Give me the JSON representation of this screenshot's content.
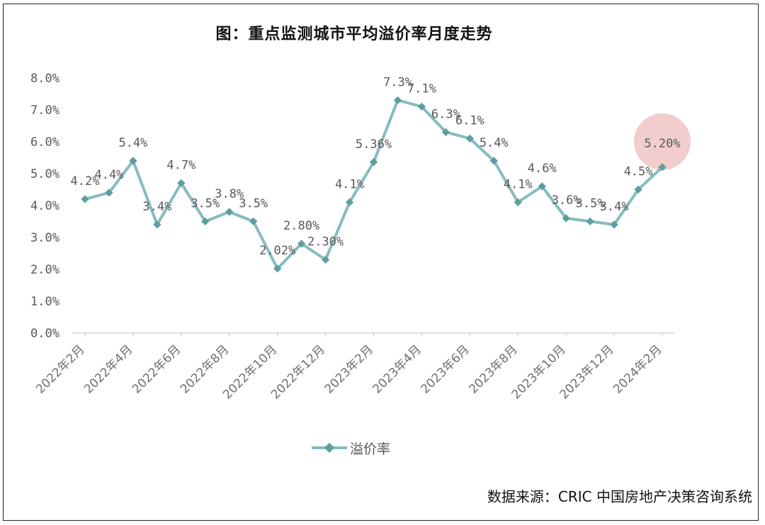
{
  "chart_data": {
    "type": "line",
    "title": "图：重点监测城市平均溢价率月度走势",
    "xlabel": "",
    "ylabel": "",
    "ylim": [
      0,
      8
    ],
    "yticks": [
      "0.0%",
      "1.0%",
      "2.0%",
      "3.0%",
      "4.0%",
      "5.0%",
      "6.0%",
      "7.0%",
      "8.0%"
    ],
    "x_tick_labels": [
      "2022年2月",
      "2022年4月",
      "2022年6月",
      "2022年8月",
      "2022年10月",
      "2022年12月",
      "2023年2月",
      "2023年4月",
      "2023年6月",
      "2023年8月",
      "2023年10月",
      "2023年12月",
      "2024年2月"
    ],
    "x_tick_positions": [
      0,
      2,
      4,
      6,
      8,
      10,
      12,
      14,
      16,
      18,
      20,
      22,
      24
    ],
    "categories": [
      "2022年2月",
      "2022年3月",
      "2022年4月",
      "2022年5月",
      "2022年6月",
      "2022年7月",
      "2022年8月",
      "2022年9月",
      "2022年10月",
      "2022年11月",
      "2022年12月",
      "2023年1月",
      "2023年2月",
      "2023年3月",
      "2023年4月",
      "2023年5月",
      "2023年6月",
      "2023年7月",
      "2023年8月",
      "2023年9月",
      "2023年10月",
      "2023年11月",
      "2023年12月",
      "2024年1月",
      "2024年2月"
    ],
    "series": [
      {
        "name": "溢价率",
        "color": "#86bcbe",
        "values": [
          4.2,
          4.4,
          5.4,
          3.4,
          4.7,
          3.5,
          3.8,
          3.5,
          2.02,
          2.8,
          2.3,
          4.1,
          5.36,
          7.3,
          7.1,
          6.3,
          6.1,
          5.4,
          4.1,
          4.6,
          3.6,
          3.5,
          3.4,
          4.5,
          5.2
        ],
        "labels": [
          "4.2%",
          "4.4%",
          "5.4%",
          "3.4%",
          "4.7%",
          "3.5%",
          "3.8%",
          "3.5%",
          "2.02%",
          "2.80%",
          "2.30%",
          "4.1%",
          "5.36%",
          "7.3%",
          "7.1%",
          "6.3%",
          "6.1%",
          "5.4%",
          "4.1%",
          "4.6%",
          "3.6%",
          "3.5%",
          "3.4%",
          "4.5%",
          "5.20%"
        ]
      }
    ],
    "highlight_index": 24,
    "highlight_color": "#e8a4a4",
    "grid": false,
    "legend_position": "bottom"
  },
  "source": "数据来源：CRIC 中国房地产决策咨询系统"
}
